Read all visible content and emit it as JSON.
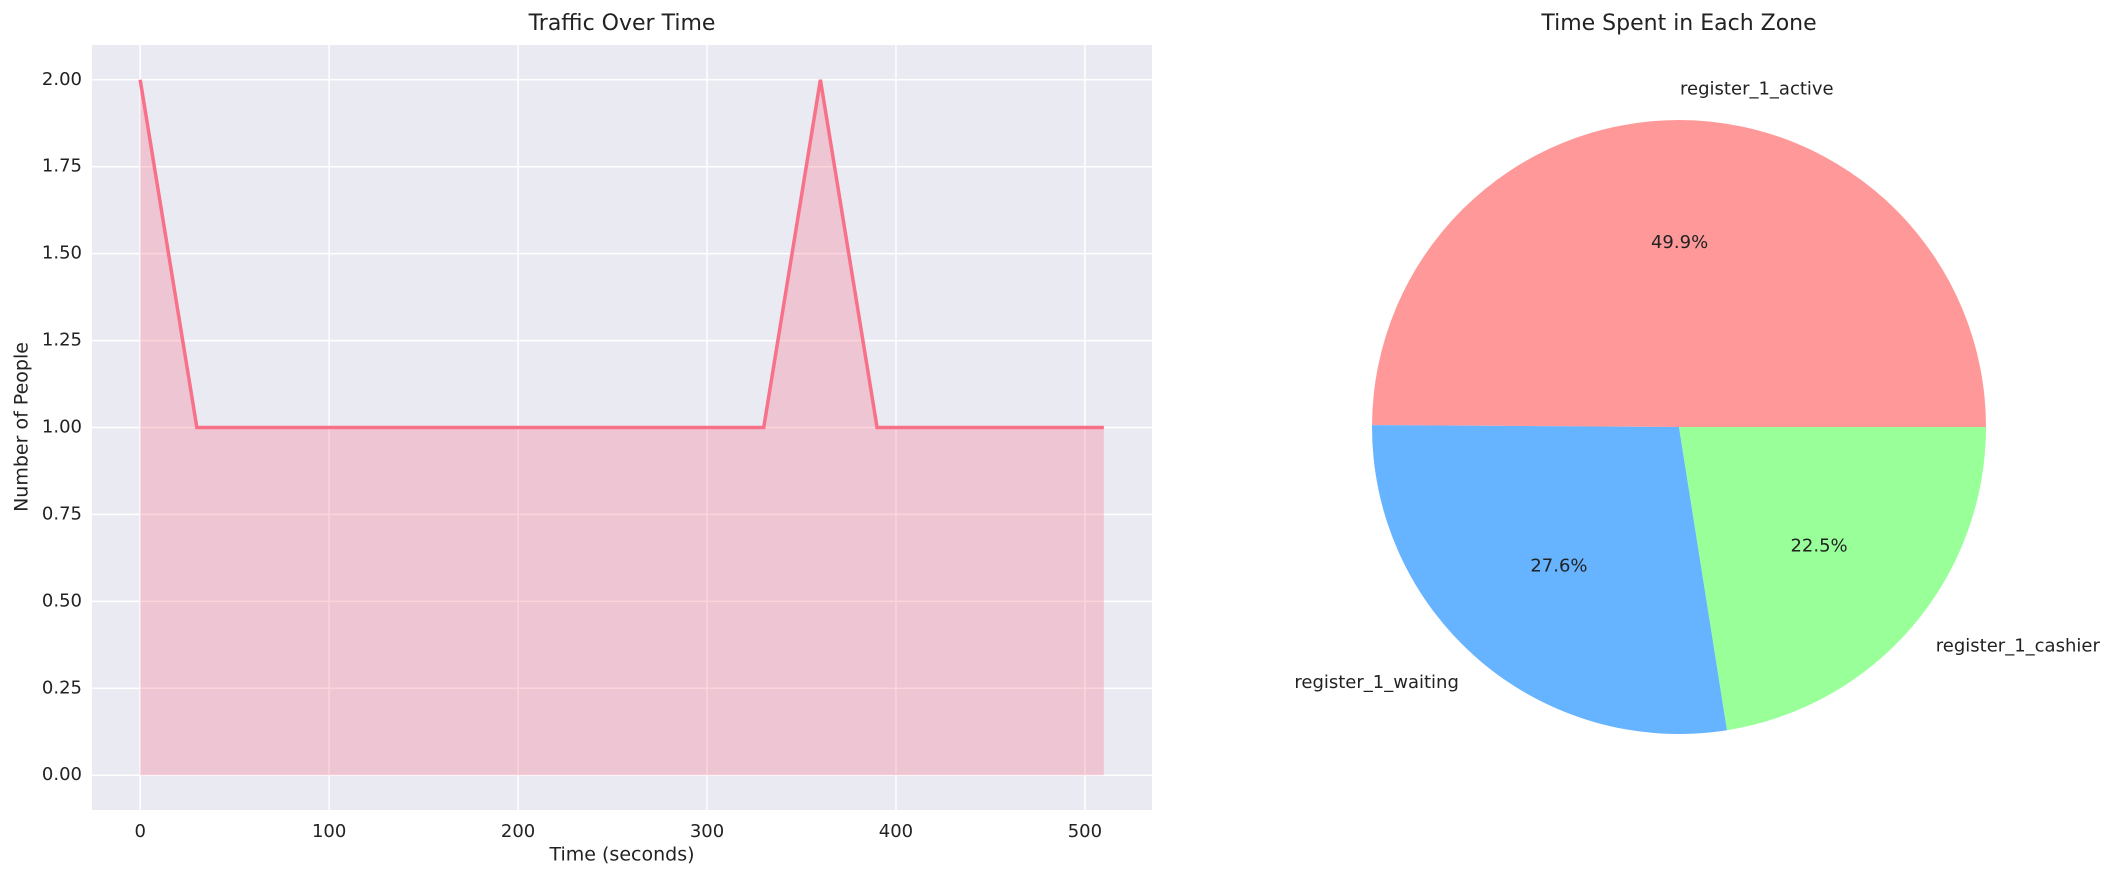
{
  "chart_data": [
    {
      "type": "area",
      "title": "Traffic Over Time",
      "x_label": "Time (seconds)",
      "y_label": "Number of People",
      "x": [
        0,
        30,
        60,
        90,
        120,
        150,
        180,
        210,
        240,
        270,
        300,
        330,
        360,
        390,
        420,
        450,
        480,
        510
      ],
      "values": [
        2,
        1,
        1,
        1,
        1,
        1,
        1,
        1,
        1,
        1,
        1,
        1,
        2,
        1,
        1,
        1,
        1,
        1
      ],
      "color": "#f77189",
      "xlim": [
        -25.5,
        535.5
      ],
      "xticks": [
        0,
        100,
        200,
        300,
        400,
        500
      ],
      "ylim": [
        -0.1,
        2.1
      ],
      "yticks": [
        {
          "value": 0,
          "label": "0.00"
        },
        {
          "value": 0.25,
          "label": "0.25"
        },
        {
          "value": 0.5,
          "label": "0.50"
        },
        {
          "value": 0.75,
          "label": "0.75"
        },
        {
          "value": 1,
          "label": "1.00"
        },
        {
          "value": 1.25,
          "label": "1.25"
        },
        {
          "value": 1.5,
          "label": "1.50"
        },
        {
          "value": 1.75,
          "label": "1.75"
        },
        {
          "value": 2,
          "label": "2.00"
        }
      ],
      "grid": true
    },
    {
      "type": "pie",
      "title": "Time Spent in Each Zone",
      "categories": [
        "register_1_active",
        "register_1_waiting",
        "register_1_cashier"
      ],
      "values": [
        49.9,
        27.6,
        22.5
      ],
      "value_labels": [
        "49.9%",
        "27.6%",
        "22.5%"
      ],
      "colors": [
        "#ff9999",
        "#66b3ff",
        "#99ff99"
      ]
    }
  ]
}
